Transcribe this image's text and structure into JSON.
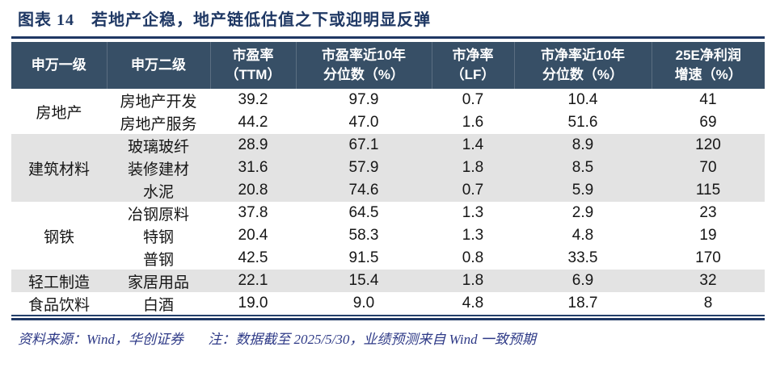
{
  "title": "图表 14　若地产企稳，地产链低估值之下或迎明显反弹",
  "footer": {
    "source": "资料来源：Wind，华创证券",
    "note": "注：数据截至 2025/5/30，业绩预测来自 Wind 一致预期"
  },
  "colors": {
    "accent_navy": "#1F3864",
    "header_bg": "#374F66",
    "header_text": "#FFFFFF",
    "shaded_row_bg": "#E3E3E3",
    "footer_text": "#2E3A87"
  },
  "chart_data": {
    "type": "table",
    "columns": [
      "申万一级",
      "申万二级",
      "市盈率\n（TTM）",
      "市盈率近10年\n分位数（%）",
      "市净率\n（LF）",
      "市净率近10年\n分位数（%）",
      "25E净利润\n增速（%）"
    ],
    "groups": [
      {
        "level1": "房地产",
        "shaded": false,
        "rows": [
          {
            "level2": "房地产开发",
            "values": [
              "39.2",
              "97.9",
              "0.7",
              "10.4",
              "41"
            ]
          },
          {
            "level2": "房地产服务",
            "values": [
              "44.2",
              "47.0",
              "1.6",
              "51.6",
              "69"
            ]
          }
        ]
      },
      {
        "level1": "建筑材料",
        "shaded": true,
        "rows": [
          {
            "level2": "玻璃玻纤",
            "values": [
              "28.9",
              "67.1",
              "1.4",
              "8.9",
              "120"
            ]
          },
          {
            "level2": "装修建材",
            "values": [
              "31.6",
              "57.9",
              "1.8",
              "8.5",
              "70"
            ]
          },
          {
            "level2": "水泥",
            "values": [
              "20.8",
              "74.6",
              "0.7",
              "5.9",
              "115"
            ]
          }
        ]
      },
      {
        "level1": "钢铁",
        "shaded": false,
        "rows": [
          {
            "level2": "冶钢原料",
            "values": [
              "37.8",
              "64.5",
              "1.3",
              "2.9",
              "23"
            ]
          },
          {
            "level2": "特钢",
            "values": [
              "20.4",
              "58.3",
              "1.3",
              "4.8",
              "19"
            ]
          },
          {
            "level2": "普钢",
            "values": [
              "42.5",
              "91.5",
              "0.8",
              "33.5",
              "170"
            ]
          }
        ]
      },
      {
        "level1": "轻工制造",
        "shaded": true,
        "rows": [
          {
            "level2": "家居用品",
            "values": [
              "22.1",
              "15.4",
              "1.8",
              "6.9",
              "32"
            ]
          }
        ]
      },
      {
        "level1": "食品饮料",
        "shaded": false,
        "rows": [
          {
            "level2": "白酒",
            "values": [
              "19.0",
              "9.0",
              "4.8",
              "18.7",
              "8"
            ]
          }
        ]
      }
    ]
  }
}
